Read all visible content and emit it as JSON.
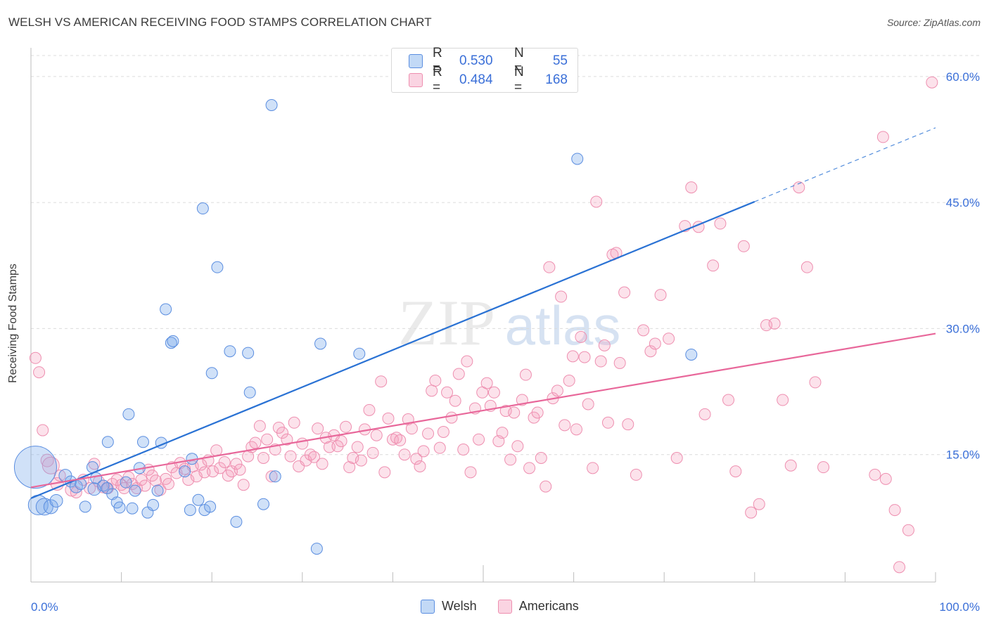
{
  "title": "WELSH VS AMERICAN RECEIVING FOOD STAMPS CORRELATION CHART",
  "source": "Source: ZipAtlas.com",
  "watermark": {
    "zip": "ZIP",
    "atlas": "atlas"
  },
  "colors": {
    "welsh_fill": "rgba(120,170,235,0.35)",
    "welsh_stroke": "#5b8ee0",
    "welsh_line": "#2a72d4",
    "american_fill": "rgba(245,160,190,0.30)",
    "american_stroke": "#ee8fb0",
    "american_line": "#e8679a",
    "tick_label": "#3a6fd8",
    "grid": "#dcdcdc"
  },
  "legend_top": [
    {
      "r_label": "R =",
      "r_value": "0.530",
      "n_label": "N =",
      "n_value": "55"
    },
    {
      "r_label": "R =",
      "r_value": "0.484",
      "n_label": "N =",
      "n_value": "168"
    }
  ],
  "legend_bottom": [
    "Welsh",
    "Americans"
  ],
  "chart_data": {
    "type": "scatter",
    "title": "WELSH VS AMERICAN RECEIVING FOOD STAMPS CORRELATION CHART",
    "xlabel": "",
    "ylabel": "Receiving Food Stamps",
    "xlim": [
      0,
      100
    ],
    "ylim": [
      0,
      63
    ],
    "x_tick_labels": [
      "0.0%",
      "100.0%"
    ],
    "y_ticks": [
      15,
      30,
      45,
      60
    ],
    "y_tick_labels": [
      "15.0%",
      "30.0%",
      "45.0%",
      "60.0%"
    ],
    "grid": true,
    "legend_position": "top-center",
    "series": [
      {
        "name": "Welsh",
        "R": 0.53,
        "N": 55,
        "trend": {
          "x": [
            0,
            80
          ],
          "y": [
            9.8,
            45.1
          ],
          "dashed_to": [
            100,
            53.9
          ]
        },
        "points": [
          [
            0.5,
            13.5,
            30
          ],
          [
            0.8,
            9.0,
            14
          ],
          [
            1.5,
            8.8,
            12
          ],
          [
            2.2,
            8.8,
            10
          ],
          [
            2.8,
            9.5,
            9
          ],
          [
            3.8,
            12.5,
            9
          ],
          [
            4.4,
            11.8,
            8
          ],
          [
            5.0,
            11.2,
            9
          ],
          [
            5.5,
            11.5,
            8
          ],
          [
            6.0,
            8.8,
            8
          ],
          [
            6.8,
            13.5,
            8
          ],
          [
            7.0,
            10.9,
            9
          ],
          [
            7.2,
            12.2,
            8
          ],
          [
            8.0,
            11.3,
            8
          ],
          [
            8.4,
            11.0,
            8
          ],
          [
            8.5,
            16.5,
            8
          ],
          [
            9.0,
            10.3,
            8
          ],
          [
            9.5,
            9.3,
            8
          ],
          [
            9.8,
            8.7,
            8
          ],
          [
            10.5,
            11.7,
            8
          ],
          [
            10.8,
            19.8,
            8
          ],
          [
            11.2,
            8.6,
            8
          ],
          [
            11.5,
            10.7,
            8
          ],
          [
            12.0,
            13.4,
            8
          ],
          [
            12.4,
            16.5,
            8
          ],
          [
            12.9,
            8.1,
            8
          ],
          [
            13.5,
            9.0,
            8
          ],
          [
            14.0,
            10.7,
            8
          ],
          [
            14.4,
            16.4,
            8
          ],
          [
            14.9,
            32.3,
            8
          ],
          [
            15.5,
            28.3,
            8
          ],
          [
            15.7,
            28.5,
            8
          ],
          [
            17.0,
            13.0,
            8
          ],
          [
            17.6,
            8.4,
            8
          ],
          [
            17.8,
            14.5,
            8
          ],
          [
            18.5,
            9.6,
            8
          ],
          [
            19.0,
            44.3,
            8
          ],
          [
            19.2,
            8.4,
            8
          ],
          [
            19.8,
            8.8,
            8
          ],
          [
            20.0,
            24.7,
            8
          ],
          [
            20.6,
            37.3,
            8
          ],
          [
            22.0,
            27.3,
            8
          ],
          [
            22.7,
            7.0,
            8
          ],
          [
            24.0,
            27.1,
            8
          ],
          [
            24.2,
            22.4,
            8
          ],
          [
            25.7,
            9.1,
            8
          ],
          [
            26.6,
            56.6,
            8
          ],
          [
            27.0,
            12.4,
            8
          ],
          [
            31.6,
            3.8,
            8
          ],
          [
            32.0,
            28.2,
            8
          ],
          [
            36.3,
            27.0,
            8
          ],
          [
            60.4,
            50.2,
            8
          ],
          [
            73.0,
            26.9,
            8
          ]
        ]
      },
      {
        "name": "Americans",
        "R": 0.484,
        "N": 168,
        "trend": {
          "x": [
            0,
            100
          ],
          "y": [
            11.1,
            29.4
          ]
        },
        "points": [
          [
            0.5,
            26.5,
            8
          ],
          [
            0.9,
            24.8,
            8
          ],
          [
            1.3,
            17.9,
            8
          ],
          [
            1.8,
            14.3,
            9
          ],
          [
            2.2,
            13.7,
            12
          ],
          [
            2.9,
            11.5,
            9
          ],
          [
            3.2,
            12.5,
            8
          ],
          [
            4.5,
            10.8,
            9
          ],
          [
            5.0,
            10.5,
            8
          ],
          [
            5.8,
            12.0,
            8
          ],
          [
            6.5,
            11.0,
            8
          ],
          [
            7.0,
            13.9,
            8
          ],
          [
            7.5,
            11.8,
            8
          ],
          [
            8.0,
            11.2,
            9
          ],
          [
            8.5,
            11.0,
            8
          ],
          [
            9.0,
            11.5,
            8
          ],
          [
            9.5,
            12.0,
            8
          ],
          [
            10.0,
            11.4,
            8
          ],
          [
            10.3,
            11.0,
            8
          ],
          [
            10.8,
            12.3,
            8
          ],
          [
            11.2,
            11.5,
            8
          ],
          [
            11.7,
            11.0,
            8
          ],
          [
            12.2,
            12.0,
            8
          ],
          [
            12.6,
            11.3,
            8
          ],
          [
            13.0,
            13.2,
            8
          ],
          [
            13.4,
            12.5,
            8
          ],
          [
            13.8,
            11.9,
            8
          ],
          [
            14.3,
            10.8,
            8
          ],
          [
            14.9,
            12.1,
            8
          ],
          [
            15.2,
            11.5,
            8
          ],
          [
            15.6,
            13.5,
            8
          ],
          [
            16.1,
            12.8,
            8
          ],
          [
            16.5,
            14.0,
            8
          ],
          [
            17.0,
            13.3,
            8
          ],
          [
            17.4,
            12.0,
            8
          ],
          [
            17.9,
            13.6,
            8
          ],
          [
            18.3,
            12.4,
            8
          ],
          [
            18.8,
            13.8,
            8
          ],
          [
            19.2,
            12.9,
            8
          ],
          [
            19.6,
            14.3,
            8
          ],
          [
            20.1,
            13.0,
            8
          ],
          [
            20.5,
            15.5,
            8
          ],
          [
            20.9,
            13.4,
            8
          ],
          [
            21.4,
            14.1,
            8
          ],
          [
            21.8,
            12.5,
            8
          ],
          [
            22.2,
            13.0,
            8
          ],
          [
            22.7,
            13.9,
            8
          ],
          [
            23.1,
            13.2,
            8
          ],
          [
            23.5,
            11.4,
            8
          ],
          [
            24.0,
            14.8,
            8
          ],
          [
            24.4,
            15.9,
            8
          ],
          [
            24.8,
            16.4,
            8
          ],
          [
            25.3,
            18.4,
            8
          ],
          [
            25.7,
            14.6,
            8
          ],
          [
            26.1,
            16.8,
            8
          ],
          [
            26.6,
            12.4,
            8
          ],
          [
            27.0,
            15.6,
            8
          ],
          [
            27.4,
            18.2,
            8
          ],
          [
            27.8,
            17.6,
            8
          ],
          [
            28.3,
            16.8,
            8
          ],
          [
            28.7,
            14.8,
            8
          ],
          [
            29.1,
            18.8,
            8
          ],
          [
            29.6,
            13.6,
            8
          ],
          [
            30.0,
            16.3,
            8
          ],
          [
            30.4,
            14.3,
            8
          ],
          [
            30.9,
            15.0,
            8
          ],
          [
            31.3,
            14.7,
            8
          ],
          [
            31.7,
            18.1,
            8
          ],
          [
            32.2,
            13.9,
            8
          ],
          [
            32.6,
            17.0,
            8
          ],
          [
            33.0,
            15.9,
            8
          ],
          [
            33.5,
            17.3,
            8
          ],
          [
            33.9,
            16.0,
            8
          ],
          [
            34.3,
            16.6,
            8
          ],
          [
            34.8,
            18.3,
            8
          ],
          [
            35.2,
            13.5,
            8
          ],
          [
            35.6,
            14.6,
            8
          ],
          [
            36.1,
            15.9,
            8
          ],
          [
            36.5,
            14.3,
            8
          ],
          [
            36.9,
            18.0,
            8
          ],
          [
            37.4,
            20.3,
            8
          ],
          [
            37.8,
            15.2,
            8
          ],
          [
            38.2,
            17.3,
            8
          ],
          [
            38.7,
            23.7,
            8
          ],
          [
            39.1,
            12.9,
            8
          ],
          [
            39.5,
            19.3,
            8
          ],
          [
            40.0,
            16.8,
            8
          ],
          [
            40.4,
            17.0,
            8
          ],
          [
            40.8,
            16.7,
            8
          ],
          [
            41.3,
            15.0,
            8
          ],
          [
            41.7,
            19.2,
            8
          ],
          [
            42.1,
            18.1,
            8
          ],
          [
            42.6,
            14.5,
            8
          ],
          [
            43.0,
            13.6,
            8
          ],
          [
            43.4,
            15.4,
            8
          ],
          [
            43.9,
            17.5,
            8
          ],
          [
            44.3,
            22.6,
            8
          ],
          [
            44.7,
            23.8,
            8
          ],
          [
            45.2,
            15.8,
            8
          ],
          [
            45.6,
            17.7,
            8
          ],
          [
            46.0,
            22.4,
            8
          ],
          [
            46.5,
            19.4,
            8
          ],
          [
            46.9,
            21.4,
            8
          ],
          [
            47.3,
            24.6,
            8
          ],
          [
            47.8,
            15.6,
            8
          ],
          [
            48.2,
            26.1,
            8
          ],
          [
            48.6,
            12.9,
            8
          ],
          [
            49.1,
            20.5,
            8
          ],
          [
            49.5,
            16.8,
            8
          ],
          [
            49.9,
            22.4,
            8
          ],
          [
            50.4,
            23.5,
            8
          ],
          [
            50.8,
            20.8,
            8
          ],
          [
            51.2,
            22.4,
            8
          ],
          [
            51.7,
            16.6,
            8
          ],
          [
            52.1,
            17.6,
            8
          ],
          [
            52.5,
            20.2,
            8
          ],
          [
            53.0,
            14.4,
            8
          ],
          [
            53.4,
            20.0,
            8
          ],
          [
            53.8,
            16.0,
            8
          ],
          [
            54.3,
            21.5,
            8
          ],
          [
            54.7,
            24.5,
            8
          ],
          [
            55.1,
            13.4,
            8
          ],
          [
            55.6,
            19.4,
            8
          ],
          [
            56.0,
            20.0,
            8
          ],
          [
            56.4,
            14.6,
            8
          ],
          [
            56.9,
            11.2,
            8
          ],
          [
            57.3,
            37.3,
            8
          ],
          [
            57.7,
            21.7,
            8
          ],
          [
            58.2,
            22.6,
            8
          ],
          [
            58.6,
            33.8,
            8
          ],
          [
            59.0,
            18.5,
            8
          ],
          [
            59.5,
            23.8,
            8
          ],
          [
            59.9,
            26.7,
            8
          ],
          [
            60.3,
            18.0,
            8
          ],
          [
            60.8,
            29.0,
            8
          ],
          [
            61.2,
            26.6,
            8
          ],
          [
            61.6,
            21.0,
            8
          ],
          [
            62.1,
            13.4,
            8
          ],
          [
            62.5,
            45.1,
            8
          ],
          [
            63.0,
            26.1,
            8
          ],
          [
            63.4,
            28.0,
            8
          ],
          [
            63.8,
            18.8,
            8
          ],
          [
            64.3,
            38.8,
            8
          ],
          [
            64.7,
            39.0,
            8
          ],
          [
            65.1,
            25.9,
            8
          ],
          [
            65.6,
            34.3,
            8
          ],
          [
            66.0,
            18.6,
            8
          ],
          [
            66.9,
            12.6,
            8
          ],
          [
            67.7,
            29.8,
            8
          ],
          [
            68.5,
            27.3,
            8
          ],
          [
            69.0,
            28.2,
            8
          ],
          [
            69.6,
            34.0,
            8
          ],
          [
            70.5,
            28.8,
            8
          ],
          [
            71.4,
            14.6,
            8
          ],
          [
            72.3,
            42.2,
            8
          ],
          [
            73.0,
            46.8,
            8
          ],
          [
            73.8,
            42.1,
            8
          ],
          [
            74.5,
            19.8,
            8
          ],
          [
            75.4,
            37.5,
            8
          ],
          [
            76.2,
            42.5,
            8
          ],
          [
            77.1,
            21.5,
            8
          ],
          [
            77.9,
            13.0,
            8
          ],
          [
            78.8,
            39.8,
            8
          ],
          [
            79.6,
            8.1,
            8
          ],
          [
            80.5,
            9.1,
            8
          ],
          [
            81.3,
            30.4,
            8
          ],
          [
            82.2,
            30.6,
            8
          ],
          [
            83.1,
            21.5,
            8
          ],
          [
            84.0,
            13.7,
            8
          ],
          [
            84.9,
            46.8,
            8
          ],
          [
            85.8,
            37.3,
            8
          ],
          [
            86.7,
            23.6,
            8
          ],
          [
            87.6,
            13.5,
            8
          ],
          [
            93.3,
            12.6,
            8
          ],
          [
            94.2,
            52.8,
            8
          ],
          [
            95.5,
            8.4,
            8
          ],
          [
            97.0,
            6.0,
            8
          ],
          [
            99.6,
            59.3,
            8
          ],
          [
            94.5,
            12.1,
            8
          ],
          [
            96.0,
            1.6,
            8
          ]
        ]
      }
    ]
  }
}
